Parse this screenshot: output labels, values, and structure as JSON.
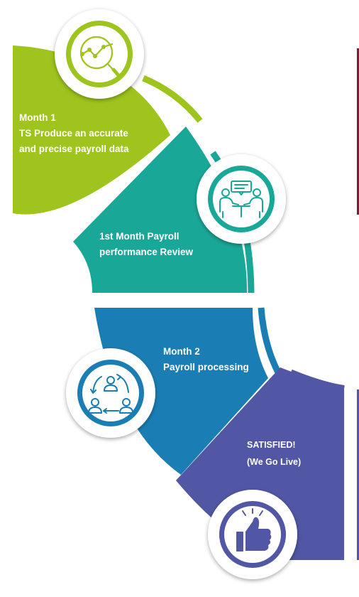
{
  "colors": {
    "step1": "#9ec41d",
    "step2": "#19a897",
    "step3": "#1a7eb4",
    "step4": "#5156a5",
    "accent_bar": "#7a1f33"
  },
  "steps": [
    {
      "line1": "Month 1",
      "line2": "TS Produce an accurate",
      "line3": "and precise payroll data",
      "icon": "magnifier-chart-icon"
    },
    {
      "line1": "1st Month Payroll",
      "line2": "performance Review",
      "icon": "team-meeting-icon"
    },
    {
      "line1": "Month 2",
      "line2": "Payroll processing",
      "icon": "people-cycle-icon"
    },
    {
      "line1": "SATISFIED!",
      "line2": "(We Go Live)",
      "icon": "thumbs-up-icon"
    }
  ]
}
